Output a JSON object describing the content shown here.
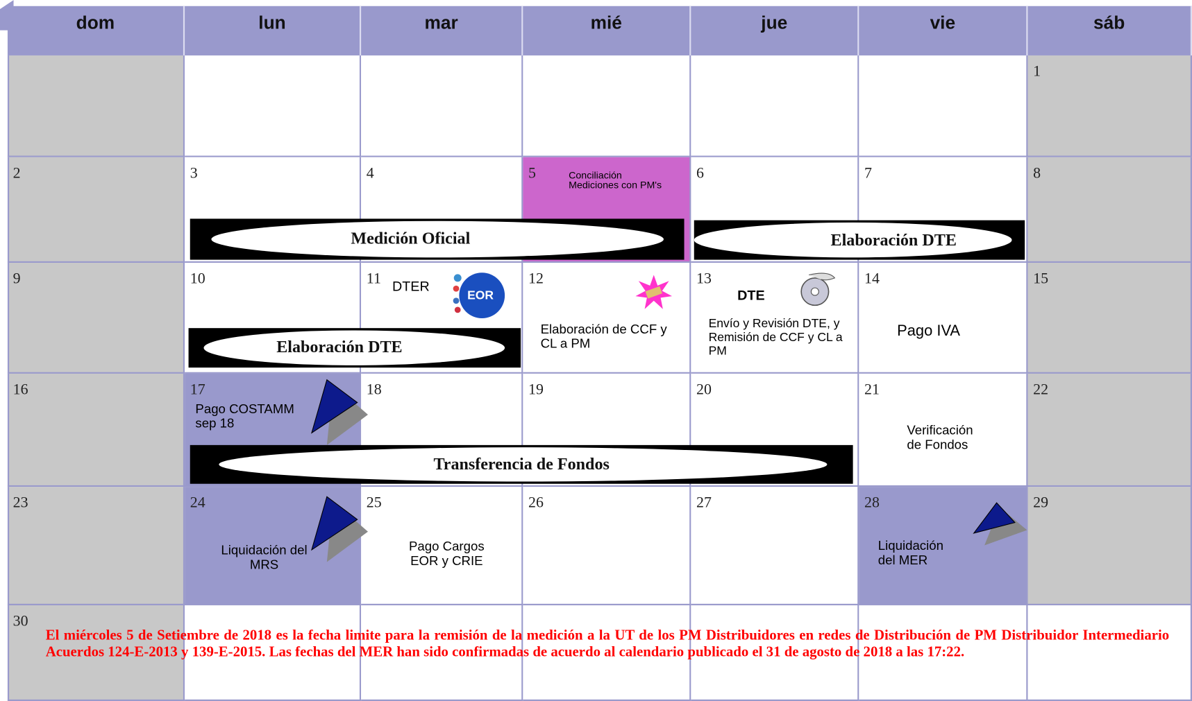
{
  "calendar": {
    "weekdays": [
      "dom",
      "lun",
      "mar",
      "mié",
      "jue",
      "vie",
      "sáb"
    ],
    "days": [
      "1",
      "2",
      "3",
      "4",
      "5",
      "6",
      "7",
      "8",
      "9",
      "10",
      "11",
      "12",
      "13",
      "14",
      "15",
      "16",
      "17",
      "18",
      "19",
      "20",
      "21",
      "22",
      "23",
      "24",
      "25",
      "26",
      "27",
      "28",
      "29",
      "30"
    ],
    "events": [
      "Conciliación Mediciones con PM's",
      "Medición Oficial",
      "Elaboración DTE",
      "Elaboración DTE",
      "DTER",
      "EOR",
      "DTE",
      "Elaboración de CCF y CL a PM",
      "Envío y  Revisión DTE, y Remisión de CCF y CL a PM",
      "Pago IVA",
      "Pago COSTAMM sep 18",
      "Transferencia de Fondos",
      "Verificación de Fondos",
      "Liquidación  del MRS",
      "Pago Cargos EOR y CRIE",
      "Liquidación del MER"
    ],
    "note": "El miércoles 5 de Setiembre de 2018 es la fecha limite para la remisión de la medición a la UT de los PM Distribuidores en redes de Distribución de PM Distribuidor Intermediario Acuerdos 124-E-2013 y 139-E-2015.  Las fechas del MER  han sido confirmadas de acuerdo al calendario publicado el 31 de agosto de 2018 a las 17:22."
  }
}
